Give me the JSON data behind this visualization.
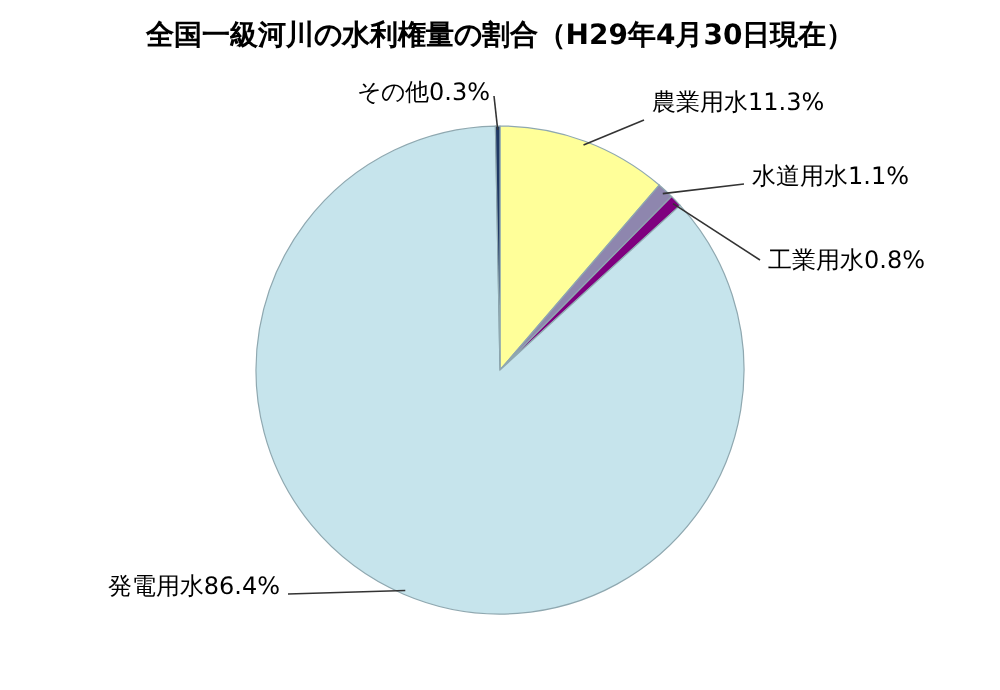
{
  "chart_data": {
    "type": "pie",
    "title": "全国一級河川の水利権量の割合（H29年4月30日現在）",
    "categories": [
      "農業用水",
      "水道用水",
      "工業用水",
      "発電用水",
      "その他"
    ],
    "values": [
      11.3,
      1.1,
      0.8,
      86.4,
      0.3
    ],
    "value_labels": [
      "11.3%",
      "1.1%",
      "0.8%",
      "86.4%",
      "0.3%"
    ],
    "colors": [
      "#ffff99",
      "#8e86ae",
      "#7f007f",
      "#c6e4ec",
      "#1f3864"
    ],
    "legend": false
  }
}
